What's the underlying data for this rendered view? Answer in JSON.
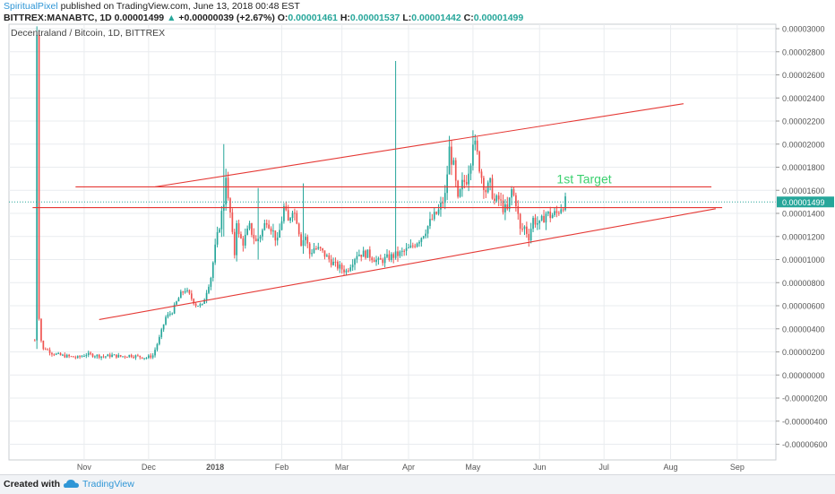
{
  "header": {
    "author": "SpiritualPixel",
    "published": "published on TradingView.com, June 13, 2018 00:48 EST",
    "ticker": "BITTREX:MANABTC, 1D",
    "last": "0.00001499",
    "change_arrow": "▲",
    "change": "+0.00000039 (+2.67%)",
    "o_label": "O:",
    "o": "0.00001461",
    "h_label": "H:",
    "h": "0.00001537",
    "l_label": "L:",
    "l": "0.00001442",
    "c_label": "C:",
    "c": "0.00001499"
  },
  "footer": {
    "created_with": "Created with",
    "brand": "TradingView"
  },
  "colors": {
    "up": "#26a69a",
    "down": "#ef5350",
    "line": "#e53935",
    "target": "#3bd16f",
    "price_tag": "#26a69a",
    "axis_text": "#555555",
    "grid": "#e9ecef",
    "author": "#2f96d6"
  },
  "chart_data": {
    "type": "candlestick",
    "title": "Decentraland / Bitcoin, 1D, BITTREX",
    "ylim": [
      -7e-06,
      3e-05
    ],
    "y_ticks": [
      "0.00003000",
      "0.00002800",
      "0.00002600",
      "0.00002400",
      "0.00002200",
      "0.00002000",
      "0.00001800",
      "0.00001600",
      "0.00001400",
      "0.00001200",
      "0.00001000",
      "0.00000800",
      "0.00000600",
      "0.00000400",
      "0.00000200",
      "0.00000000",
      "-0.00000200",
      "-0.00000400",
      "-0.00000600"
    ],
    "y_tick_values": [
      30,
      28,
      26,
      24,
      22,
      20,
      18,
      16,
      14,
      12,
      10,
      8,
      6,
      4,
      2,
      0,
      -2,
      -4,
      -6
    ],
    "x_ticks": [
      {
        "label": "Nov",
        "day": 23
      },
      {
        "label": "Dec",
        "day": 53
      },
      {
        "label": "2018",
        "day": 84
      },
      {
        "label": "Feb",
        "day": 115
      },
      {
        "label": "Mar",
        "day": 143
      },
      {
        "label": "Apr",
        "day": 174
      },
      {
        "label": "May",
        "day": 204
      },
      {
        "label": "Jun",
        "day": 235
      },
      {
        "label": "Jul",
        "day": 265
      },
      {
        "label": "Aug",
        "day": 296
      },
      {
        "label": "Sep",
        "day": 327
      }
    ],
    "grid": true,
    "price_label": "0.00001499",
    "price_value": 14.99,
    "annotation": "1st Target",
    "trend_lines": [
      {
        "from": [
          -1,
          14.5
        ],
        "to": [
          320,
          14.5
        ]
      },
      {
        "from": [
          19,
          16.3
        ],
        "to": [
          315,
          16.3
        ]
      },
      {
        "from": [
          30,
          4.8
        ],
        "to": [
          317,
          14.4
        ]
      },
      {
        "from": [
          56,
          16.3
        ],
        "to": [
          302,
          23.5
        ]
      }
    ],
    "price_path_days": [
      0,
      1,
      2,
      3,
      4,
      5,
      8,
      12,
      16,
      20,
      24,
      28,
      32,
      36,
      40,
      44,
      48,
      52,
      55,
      58,
      61,
      64,
      66,
      68,
      70,
      72,
      75,
      78,
      80,
      82,
      84,
      86,
      88,
      89,
      90,
      91,
      92,
      93,
      94,
      95,
      97,
      100,
      103,
      106,
      108,
      110,
      113,
      116,
      118,
      120,
      122,
      124,
      126,
      128,
      130,
      133,
      136,
      140,
      145,
      150,
      155,
      160,
      165,
      170,
      175,
      180,
      185,
      188,
      191,
      193,
      195,
      197,
      199,
      201,
      203,
      204,
      206,
      208,
      210,
      212,
      214,
      216,
      218,
      220,
      222,
      224,
      226,
      228,
      230,
      232,
      235,
      238,
      240,
      243,
      245,
      247
    ],
    "price_path_closes": [
      3.0,
      30.0,
      5.0,
      3.0,
      2.2,
      2.3,
      1.9,
      1.7,
      1.6,
      1.5,
      1.8,
      1.7,
      1.6,
      1.7,
      1.6,
      1.7,
      1.6,
      1.5,
      1.7,
      3.2,
      5.0,
      5.5,
      6.3,
      7.0,
      7.4,
      6.9,
      6.1,
      6.0,
      7.3,
      8.5,
      11.0,
      13.0,
      15.0,
      17.5,
      15.0,
      14.0,
      12.0,
      10.5,
      13.5,
      12.0,
      11.5,
      12.8,
      11.5,
      12.5,
      13.5,
      12.8,
      11.5,
      14.5,
      13.2,
      14.5,
      13.5,
      11.5,
      12.0,
      10.5,
      11.0,
      10.8,
      10.2,
      9.5,
      9.0,
      10.5,
      10.5,
      9.8,
      10.2,
      10.5,
      11.0,
      12.0,
      13.5,
      14.2,
      15.5,
      19.5,
      18.0,
      15.0,
      16.5,
      17.0,
      18.8,
      20.5,
      19.0,
      17.2,
      16.0,
      16.5,
      15.0,
      15.2,
      14.5,
      14.2,
      16.0,
      15.0,
      12.5,
      12.8,
      12.0,
      13.5,
      13.0,
      14.0,
      13.8,
      14.0,
      14.6,
      14.99
    ],
    "spikes": [
      {
        "day": 168,
        "high": 27.2,
        "low": 14.0
      },
      {
        "day": 204,
        "high": 21.2,
        "low": 18.5
      },
      {
        "day": 88,
        "high": 20.0,
        "low": 12.0
      },
      {
        "day": 104,
        "high": 16.2,
        "low": 10.0
      },
      {
        "day": 125,
        "high": 16.6,
        "low": 10.5
      }
    ],
    "x_domain": [
      -12,
      345
    ]
  }
}
